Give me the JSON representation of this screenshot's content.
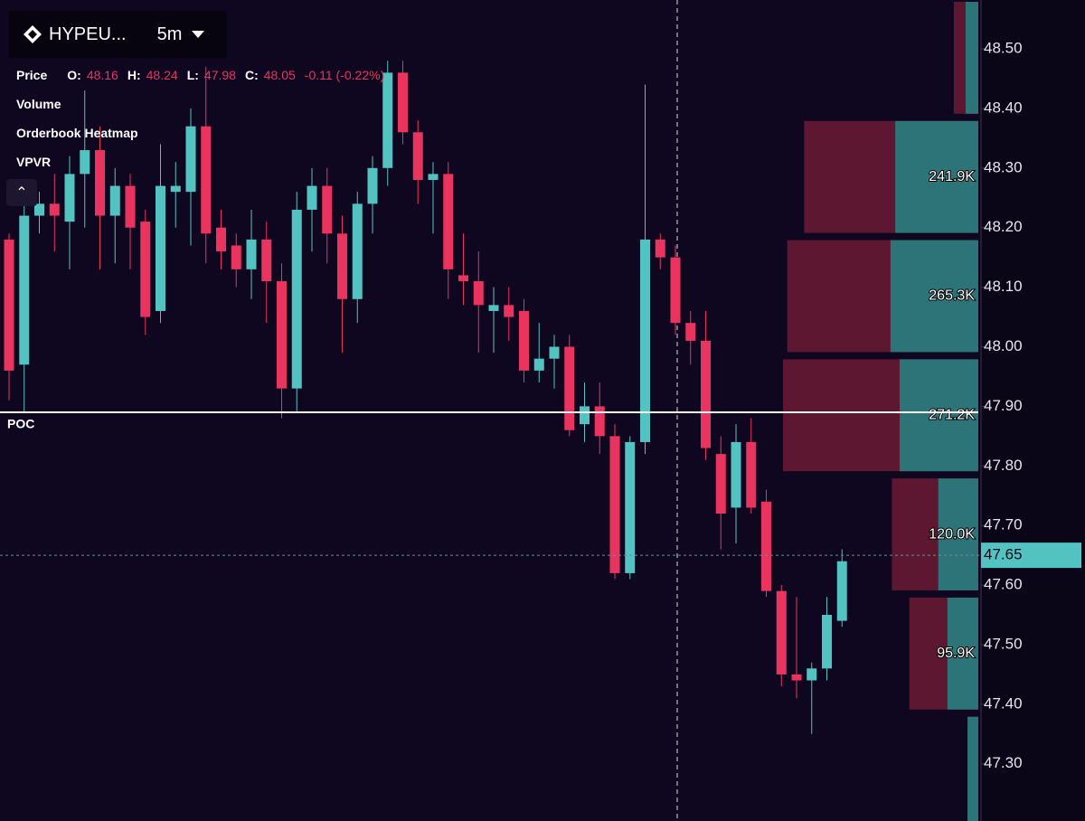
{
  "header": {
    "symbol": "HYPEU...",
    "interval": "5m"
  },
  "legend": {
    "name": "Price",
    "o_label": "O:",
    "o": "48.16",
    "h_label": "H:",
    "h": "48.24",
    "l_label": "L:",
    "l": "47.98",
    "c_label": "C:",
    "c": "48.05",
    "change": "-0.11 (-0.22%)"
  },
  "indicators": [
    "Volume",
    "Orderbook Heatmap",
    "VPVR"
  ],
  "chart_data": {
    "type": "candlestick",
    "open": [
      48.18,
      47.97,
      48.22,
      48.24,
      48.21,
      48.29,
      48.33,
      48.22,
      48.27,
      48.21,
      48.06,
      48.26,
      48.26,
      48.37,
      48.2,
      48.17,
      48.13,
      48.18,
      48.11,
      47.93,
      48.23,
      48.27,
      48.19,
      48.08,
      48.24,
      48.3,
      48.46,
      48.36,
      48.28,
      48.29,
      48.12,
      48.11,
      48.06,
      48.07,
      48.06,
      47.96,
      47.98,
      48.0,
      47.87,
      47.9,
      47.85,
      47.62,
      47.84,
      48.18,
      48.15,
      48.04,
      48.01,
      47.82,
      47.73,
      47.84,
      47.74,
      47.59,
      47.45,
      47.44,
      47.46,
      47.54
    ],
    "high": [
      48.19,
      48.24,
      48.26,
      48.29,
      48.32,
      48.43,
      48.37,
      48.3,
      48.29,
      48.23,
      48.34,
      48.31,
      48.4,
      48.47,
      48.23,
      48.19,
      48.23,
      48.21,
      48.14,
      48.26,
      48.3,
      48.3,
      48.22,
      48.26,
      48.32,
      48.48,
      48.48,
      48.38,
      48.31,
      48.31,
      48.19,
      48.16,
      48.1,
      48.1,
      48.08,
      48.04,
      48.02,
      48.02,
      47.94,
      47.94,
      47.87,
      47.85,
      48.44,
      48.19,
      48.17,
      48.06,
      48.06,
      47.85,
      47.87,
      47.88,
      47.76,
      47.6,
      47.58,
      47.47,
      47.58,
      47.66
    ],
    "low": [
      47.91,
      47.89,
      48.19,
      48.16,
      48.13,
      48.2,
      48.13,
      48.14,
      48.13,
      48.02,
      48.04,
      48.2,
      48.17,
      48.14,
      48.13,
      48.1,
      48.08,
      48.04,
      47.88,
      47.89,
      48.16,
      48.14,
      47.99,
      48.04,
      48.19,
      48.27,
      48.34,
      48.24,
      48.19,
      48.08,
      48.07,
      47.99,
      47.99,
      48.01,
      47.94,
      47.94,
      47.93,
      47.85,
      47.84,
      47.82,
      47.61,
      47.61,
      47.82,
      48.13,
      48.02,
      47.97,
      47.81,
      47.66,
      47.67,
      47.72,
      47.58,
      47.43,
      47.41,
      47.35,
      47.44,
      47.53
    ],
    "close": [
      47.96,
      48.22,
      48.24,
      48.22,
      48.29,
      48.33,
      48.22,
      48.27,
      48.2,
      48.05,
      48.27,
      48.27,
      48.37,
      48.19,
      48.16,
      48.13,
      48.18,
      48.11,
      47.93,
      48.23,
      48.27,
      48.19,
      48.08,
      48.24,
      48.3,
      48.46,
      48.36,
      48.28,
      48.29,
      48.13,
      48.11,
      48.07,
      48.07,
      48.05,
      47.96,
      47.98,
      48.0,
      47.86,
      47.9,
      47.85,
      47.62,
      47.84,
      48.18,
      48.15,
      48.04,
      48.01,
      47.83,
      47.72,
      47.84,
      47.73,
      47.59,
      47.45,
      47.44,
      47.46,
      47.55,
      47.64
    ],
    "up_color": "#53c3c1",
    "down_color": "#e8345f",
    "ylim": [
      47.204,
      48.582
    ],
    "yticks": [
      {
        "value": 48.5,
        "label": "48.50"
      },
      {
        "value": 48.4,
        "label": "48.40"
      },
      {
        "value": 48.3,
        "label": "48.30"
      },
      {
        "value": 48.2,
        "label": "48.20"
      },
      {
        "value": 48.1,
        "label": "48.10"
      },
      {
        "value": 48.0,
        "label": "48.00"
      },
      {
        "value": 47.9,
        "label": "47.90"
      },
      {
        "value": 47.8,
        "label": "47.80"
      },
      {
        "value": 47.7,
        "label": "47.70"
      },
      {
        "value": 47.6,
        "label": "47.60"
      },
      {
        "value": 47.5,
        "label": "47.50"
      },
      {
        "value": 47.4,
        "label": "47.40"
      },
      {
        "value": 47.3,
        "label": "47.30"
      }
    ],
    "grid": false,
    "poc": 47.89,
    "poc_label": "POC",
    "last_price": 47.65,
    "volume_profile": {
      "bins": [
        48.585,
        48.385,
        48.185,
        47.985,
        47.785,
        47.585,
        47.385,
        47.185
      ],
      "totals": [
        34000,
        241900,
        265300,
        271200,
        120000,
        95900,
        15000
      ],
      "value_labels": [
        null,
        "241.9K",
        "265.3K",
        "271.2K",
        "120.0K",
        "95.9K",
        null
      ],
      "buy": [
        17600,
        115300,
        122000,
        109200,
        55600,
        42900,
        15000
      ],
      "sell_color": "#5e1730",
      "buy_color": "#2d7479"
    }
  }
}
